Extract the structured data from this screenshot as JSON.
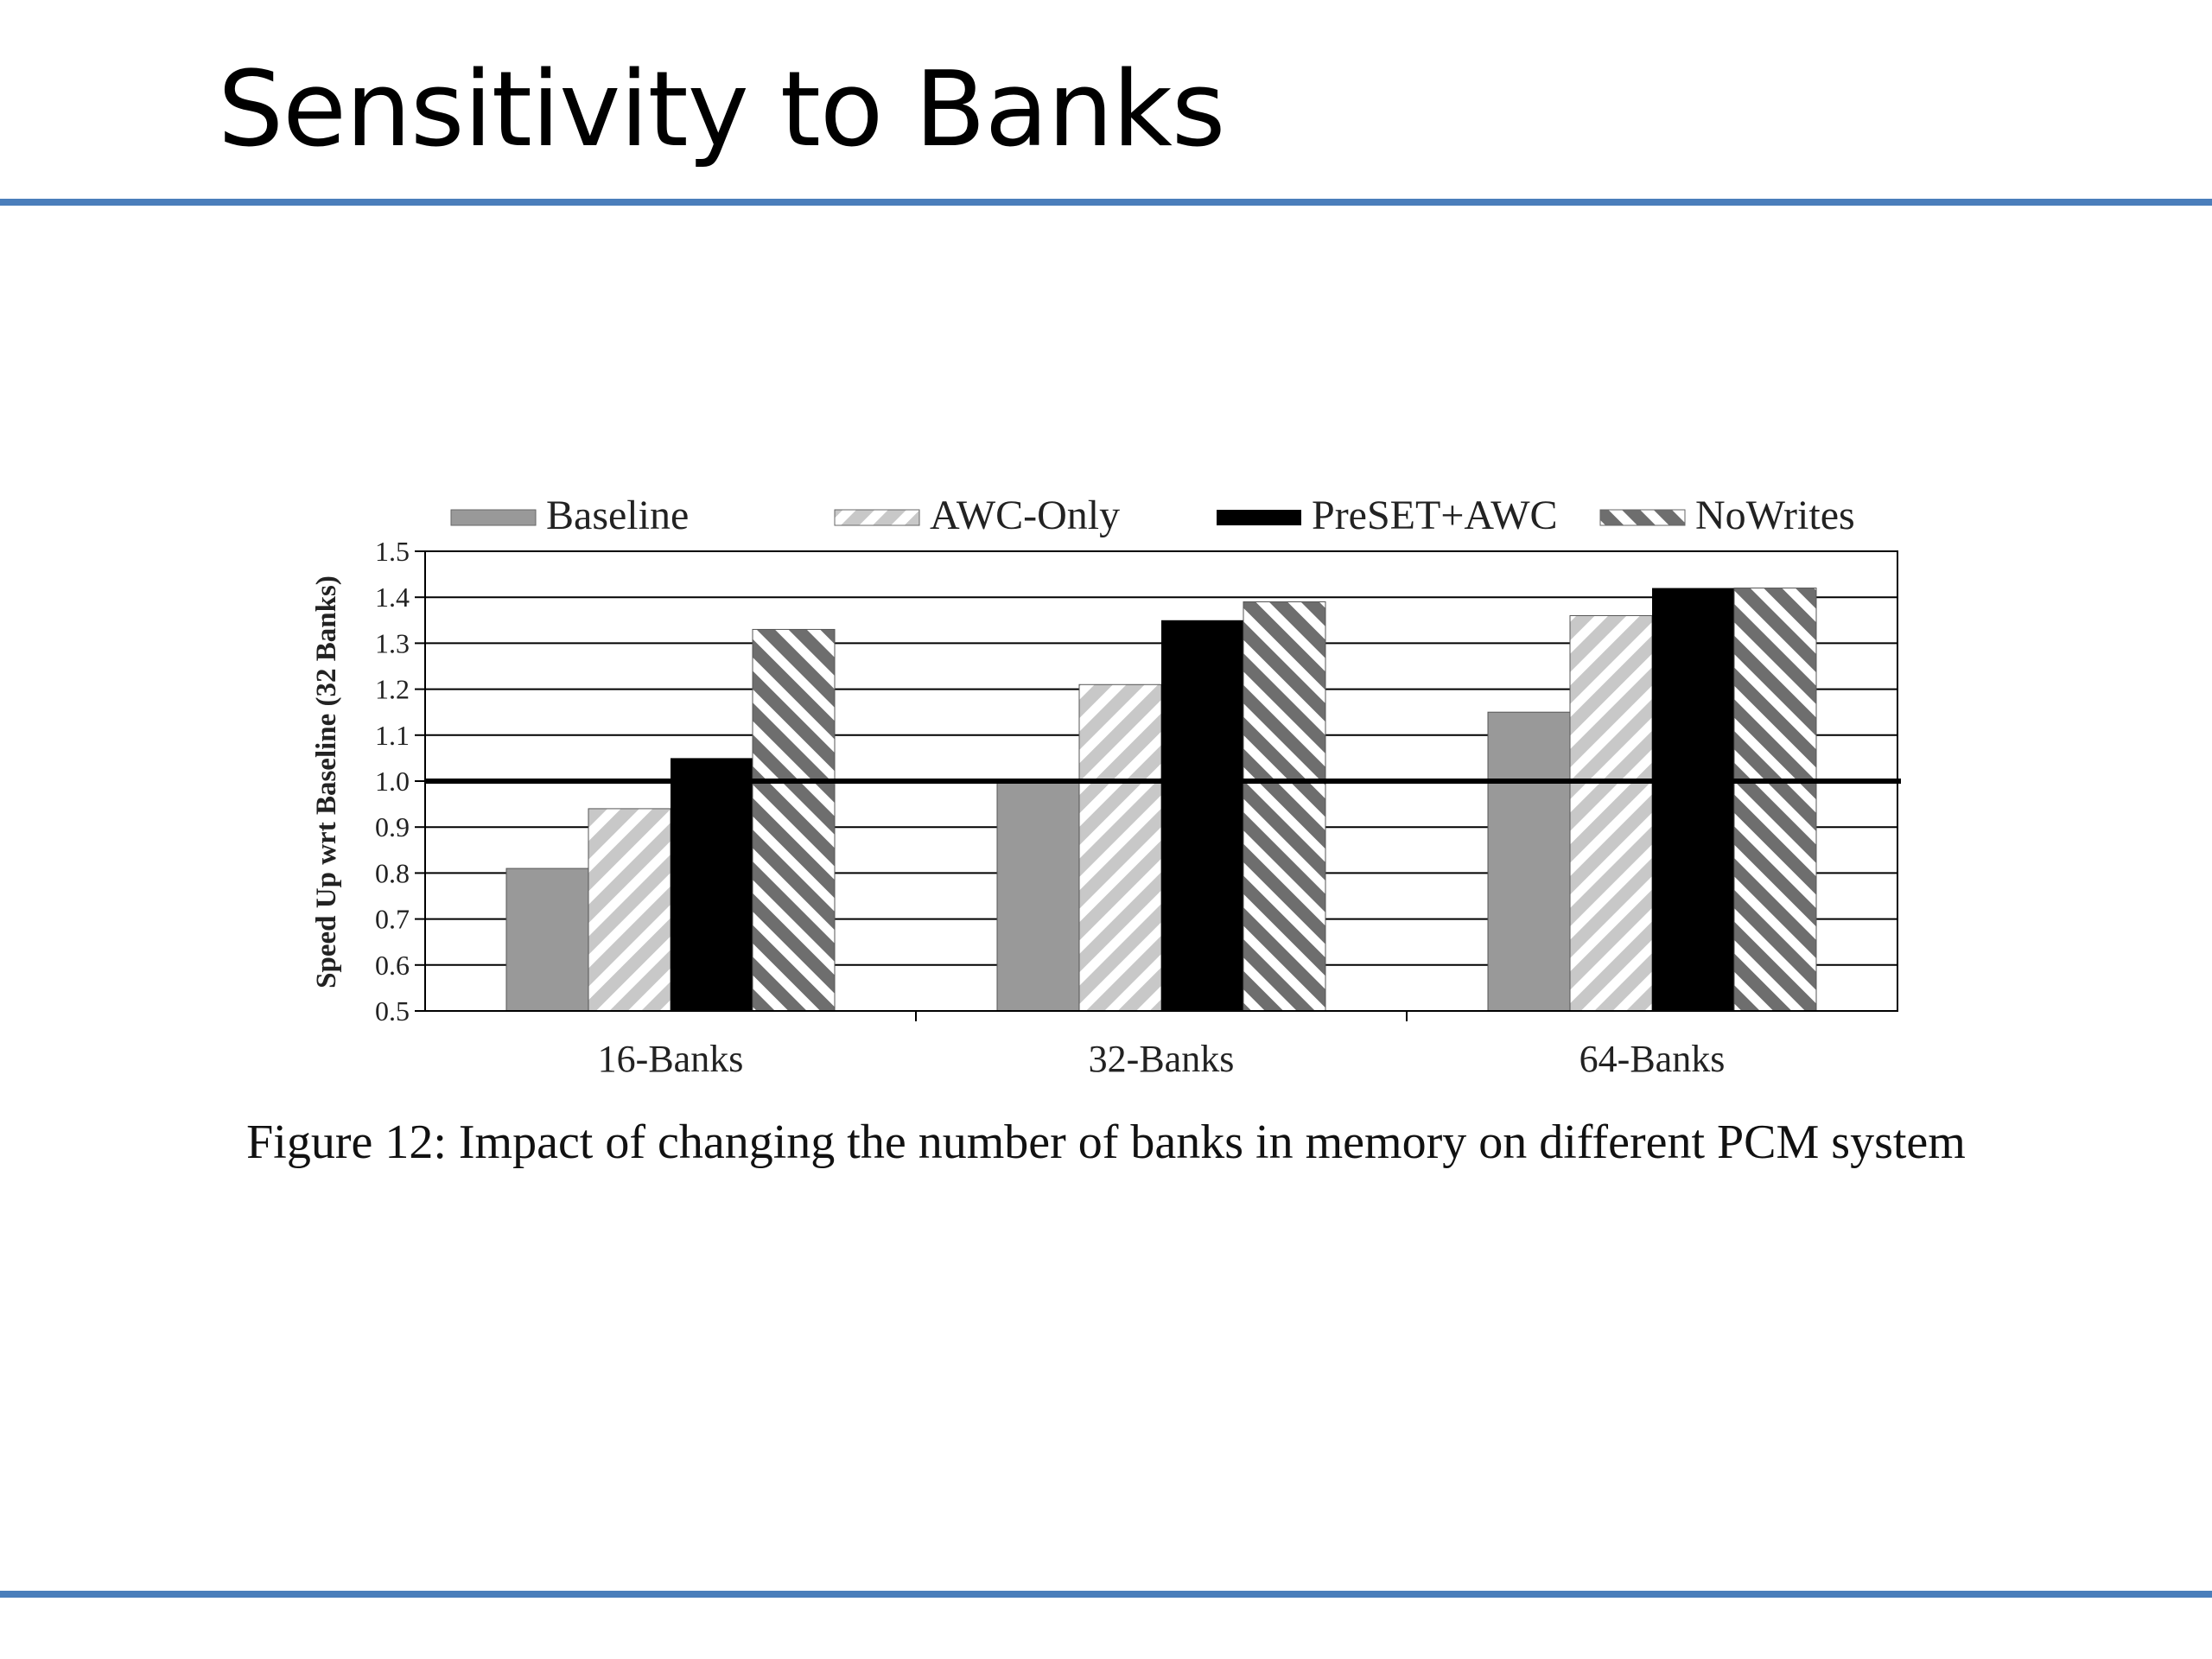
{
  "slide": {
    "title": "Sensitivity to Banks"
  },
  "caption": "Figure 12: Impact of changing the number of banks in memory on different PCM system",
  "colors": {
    "accent_rule": "#4a7ebb",
    "baseline": "#999999",
    "awc_only": "#c8c8c8",
    "preset_awc": "#000000",
    "nowrites": "#6e6e6e"
  },
  "chart_data": {
    "type": "bar",
    "title": "",
    "xlabel": "",
    "ylabel": "Speed Up wrt Baseline (32 Banks)",
    "ylim": [
      0.5,
      1.5
    ],
    "yticks": [
      "0.5",
      "0.6",
      "0.7",
      "0.8",
      "0.9",
      "1.0",
      "1.1",
      "1.2",
      "1.3",
      "1.4",
      "1.5"
    ],
    "grid": true,
    "reference_line": 1.0,
    "legend_position": "top",
    "categories": [
      "16-Banks",
      "32-Banks",
      "64-Banks"
    ],
    "series": [
      {
        "name": "Baseline",
        "pattern": "solid-gray",
        "values": [
          0.81,
          1.0,
          1.15
        ]
      },
      {
        "name": "AWC-Only",
        "pattern": "light-hatch",
        "values": [
          0.94,
          1.21,
          1.36
        ]
      },
      {
        "name": "PreSET+AWC",
        "pattern": "solid-black",
        "values": [
          1.05,
          1.35,
          1.42
        ]
      },
      {
        "name": "NoWrites",
        "pattern": "dark-hatch",
        "values": [
          1.33,
          1.39,
          1.42
        ]
      }
    ]
  }
}
